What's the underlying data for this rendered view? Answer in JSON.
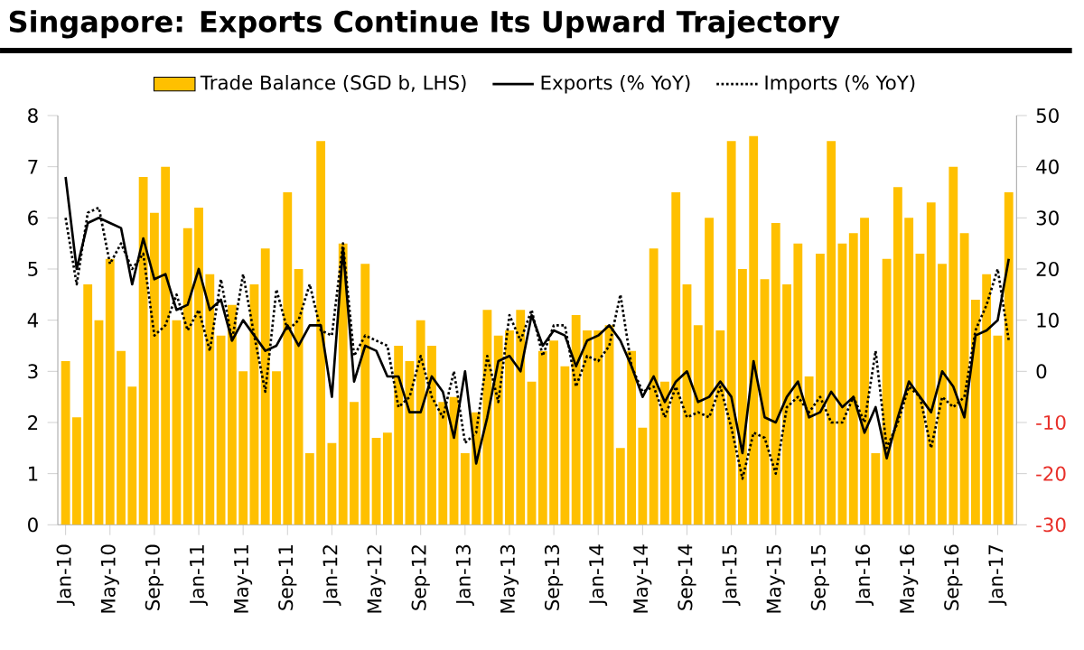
{
  "chart_data": {
    "type": "bar",
    "title": "Singapore: Exports Continue Its Upward Trajectory",
    "categories": [
      "Jan-10",
      null,
      null,
      null,
      "May-10",
      null,
      null,
      null,
      "Sep-10",
      null,
      null,
      null,
      "Jan-11",
      null,
      null,
      null,
      "May-11",
      null,
      null,
      null,
      "Sep-11",
      null,
      null,
      null,
      "Jan-12",
      null,
      null,
      null,
      "May-12",
      null,
      null,
      null,
      "Sep-12",
      null,
      null,
      null,
      "Jan-13",
      null,
      null,
      null,
      "May-13",
      null,
      null,
      null,
      "Sep-13",
      null,
      null,
      null,
      "Jan-14",
      null,
      null,
      null,
      "May-14",
      null,
      null,
      null,
      "Sep-14",
      null,
      null,
      null,
      "Jan-15",
      null,
      null,
      null,
      "May-15",
      null,
      null,
      null,
      "Sep-15",
      null,
      null,
      null,
      "Jan-16",
      null,
      null,
      null,
      "May-16",
      null,
      null,
      null,
      "Sep-16",
      null,
      null,
      null,
      "Jan-17",
      null
    ],
    "series": [
      {
        "name": "Trade Balance (SGD b, LHS)",
        "color": "#ffc000",
        "values": [
          3.2,
          2.1,
          4.7,
          4.0,
          5.2,
          3.4,
          2.7,
          6.8,
          6.1,
          7.0,
          4.0,
          5.8,
          6.2,
          4.9,
          3.7,
          4.3,
          3.0,
          4.7,
          5.4,
          3.0,
          6.5,
          5.0,
          1.4,
          7.5,
          1.6,
          5.5,
          2.4,
          5.1,
          1.7,
          1.8,
          3.5,
          3.2,
          4.0,
          3.5,
          2.4,
          2.5,
          1.4,
          2.2,
          4.2,
          3.7,
          3.8,
          4.2,
          2.8,
          3.4,
          3.6,
          3.1,
          4.1,
          3.8,
          3.8,
          3.9,
          1.5,
          3.4,
          1.9,
          5.4,
          2.8,
          6.5,
          4.7,
          3.9,
          6.0,
          3.8,
          7.5,
          5.0,
          7.6,
          4.8,
          5.9,
          4.7,
          5.5,
          2.9,
          5.3,
          7.5,
          5.5,
          5.7,
          6.0,
          1.4,
          5.2,
          6.6,
          6.0,
          5.3,
          6.3,
          5.1,
          7.0,
          5.7,
          4.4,
          4.9,
          3.7,
          6.5
        ]
      },
      {
        "name": "Exports (% YoY)",
        "type": "line",
        "axis": "y2",
        "color": "#000000",
        "line_style": "solid",
        "values": [
          38,
          20,
          29,
          30,
          29,
          28,
          17,
          26,
          18,
          19,
          12,
          13,
          20,
          12,
          14,
          6,
          10,
          7,
          4,
          5,
          9,
          5,
          9,
          9,
          -5,
          24,
          -2,
          5,
          4,
          -1,
          -1,
          -8,
          -8,
          -1,
          -4,
          -13,
          0,
          -18,
          -9,
          2,
          3,
          0,
          11,
          5,
          8,
          7,
          1,
          6,
          7,
          9,
          6,
          1,
          -5,
          -1,
          -6,
          -2,
          0,
          -6,
          -5,
          -2,
          -5,
          -16,
          2,
          -9,
          -10,
          -5,
          -2,
          -9,
          -8,
          -4,
          -7,
          -5,
          -12,
          -7,
          -17,
          -9,
          -2,
          -5,
          -8,
          0,
          -3,
          -9,
          7,
          8,
          10,
          22
        ]
      },
      {
        "name": "Imports (% YoY)",
        "type": "line",
        "axis": "y2",
        "color": "#000000",
        "line_style": "dotted",
        "values": [
          30,
          17,
          31,
          32,
          21,
          25,
          20,
          23,
          7,
          9,
          15,
          8,
          12,
          4,
          18,
          6,
          19,
          7,
          -4,
          16,
          8,
          10,
          17,
          8,
          7,
          25,
          3,
          7,
          6,
          5,
          -7,
          -5,
          3,
          -5,
          -9,
          0,
          -14,
          -12,
          3,
          -6,
          11,
          6,
          12,
          3,
          9,
          9,
          -3,
          3,
          2,
          5,
          15,
          1,
          -4,
          -3,
          -9,
          -3,
          -9,
          -8,
          -9,
          -3,
          -11,
          -21,
          -12,
          -13,
          -20,
          -7,
          -5,
          -8,
          -5,
          -10,
          -10,
          -5,
          -10,
          4,
          -15,
          -10,
          -3,
          -5,
          -15,
          -5,
          -7,
          -5,
          8,
          13,
          20,
          6
        ]
      }
    ],
    "ylim": [
      0,
      8
    ],
    "yticks": [
      0,
      1,
      2,
      3,
      4,
      5,
      6,
      7,
      8
    ],
    "y2lim": [
      -30,
      50
    ],
    "y2ticks": [
      -30,
      -20,
      -10,
      0,
      10,
      20,
      30,
      40,
      50
    ],
    "legend": "top"
  }
}
